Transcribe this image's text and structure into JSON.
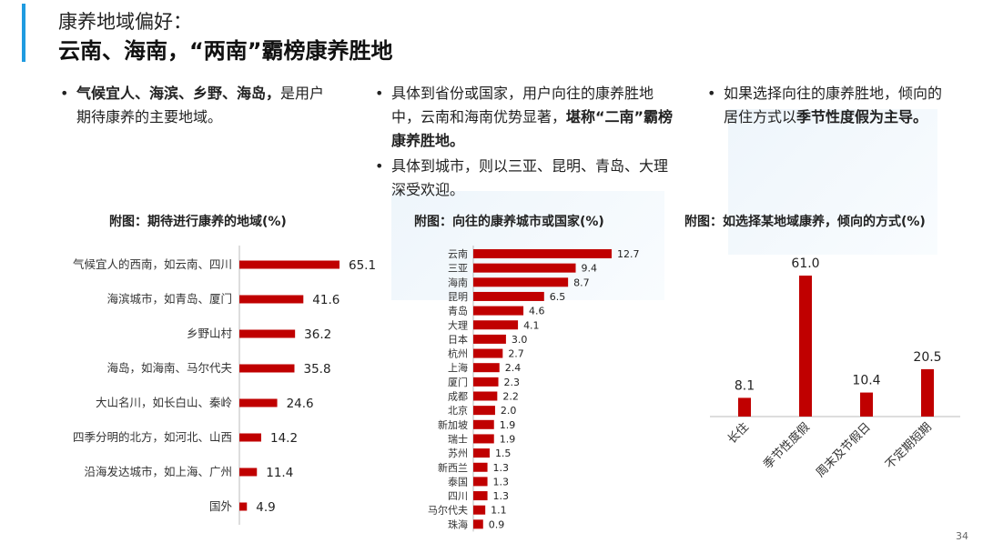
{
  "header": {
    "subtitle": "康养地域偏好：",
    "title": "云南、海南，“两南”霸榜康养胜地"
  },
  "bullets": {
    "col1": [
      {
        "parts": [
          {
            "text": "气候宜人、海滨、乡野、海岛，",
            "bold": true
          },
          {
            "text": "是用户期待康养的主要地域。",
            "bold": false
          }
        ]
      }
    ],
    "col2": [
      {
        "parts": [
          {
            "text": "具体到省份或国家，用户向往的康养胜地中，云南和海南优势显著，",
            "bold": false
          },
          {
            "text": "堪称“二南”霸榜康养胜地。",
            "bold": true
          }
        ]
      },
      {
        "parts": [
          {
            "text": "具体到城市，则以三亚、昆明、青岛、大理深受欢迎。",
            "bold": false
          }
        ]
      }
    ],
    "col3": [
      {
        "parts": [
          {
            "text": "如果选择向往的康养胜地，倾向的居住方式以",
            "bold": false
          },
          {
            "text": "季节性度假为主导。",
            "bold": true
          }
        ]
      }
    ]
  },
  "chart_data": [
    {
      "type": "bar",
      "orientation": "horizontal",
      "title": "附图：期待进行康养的地域(%)",
      "categories": [
        "气候宜人的西南，如云南、四川",
        "海滨城市，如青岛、厦门",
        "乡野山村",
        "海岛，如海南、马尔代夫",
        "大山名川，如长白山、秦岭",
        "四季分明的北方，如河北、山西",
        "沿海发达城市，如上海、广州",
        "国外"
      ],
      "values": [
        65.1,
        41.6,
        36.2,
        35.8,
        24.6,
        14.2,
        11.4,
        4.9
      ],
      "color": "#c00000"
    },
    {
      "type": "bar",
      "orientation": "horizontal",
      "title": "附图：向往的康养城市或国家(%)",
      "categories": [
        "云南",
        "三亚",
        "海南",
        "昆明",
        "青岛",
        "大理",
        "日本",
        "杭州",
        "上海",
        "厦门",
        "成都",
        "北京",
        "新加坡",
        "瑞士",
        "苏州",
        "新西兰",
        "泰国",
        "四川",
        "马尔代夫",
        "珠海"
      ],
      "values": [
        12.7,
        9.4,
        8.7,
        6.5,
        4.6,
        4.1,
        3.0,
        2.7,
        2.4,
        2.3,
        2.2,
        2.0,
        1.9,
        1.9,
        1.5,
        1.3,
        1.3,
        1.3,
        1.1,
        0.9
      ],
      "color": "#c00000"
    },
    {
      "type": "bar",
      "orientation": "vertical",
      "title": "附图：如选择某地域康养，倾向的方式(%)",
      "categories": [
        "长住",
        "季节性度假",
        "周末及节假日",
        "不定期短期"
      ],
      "values": [
        8.1,
        61.0,
        10.4,
        20.5
      ],
      "color": "#c00000"
    }
  ],
  "page_number": "34"
}
